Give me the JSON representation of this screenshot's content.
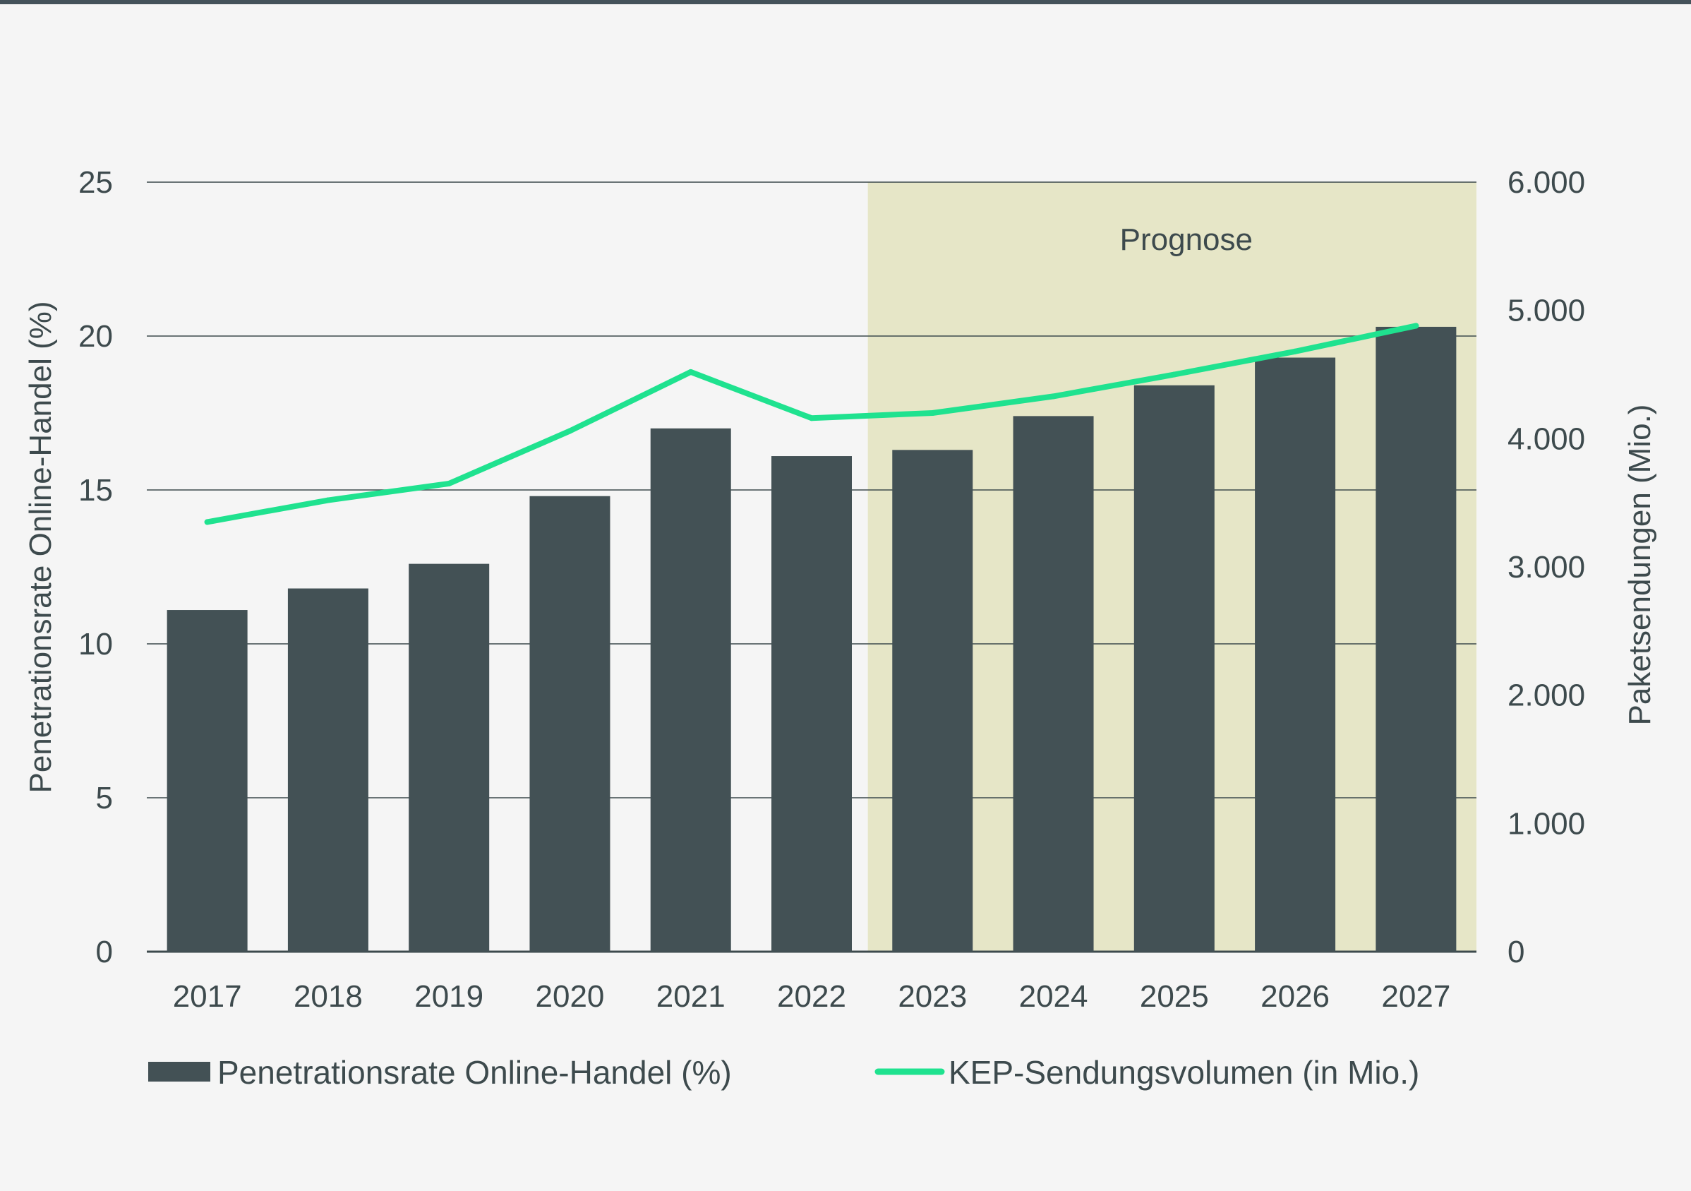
{
  "chart_data": {
    "type": "bar",
    "categories": [
      "2017",
      "2018",
      "2019",
      "2020",
      "2021",
      "2022",
      "2023",
      "2024",
      "2025",
      "2026",
      "2027"
    ],
    "series": [
      {
        "name": "Penetrationsrate Online-Handel (%)",
        "type": "bar",
        "axis": "left",
        "values": [
          11.1,
          11.8,
          12.6,
          14.8,
          17.0,
          16.1,
          16.3,
          17.4,
          18.4,
          19.3,
          20.3
        ]
      },
      {
        "name": "KEP-Sendungsvolumen (in Mio.)",
        "type": "line",
        "axis": "right",
        "values": [
          3350,
          3520,
          3650,
          4060,
          4520,
          4160,
          4200,
          4330,
          4500,
          4680,
          4880
        ]
      }
    ],
    "ylabel": "Penetrationsrate Online-Handel (%)",
    "ylabel_right": "Paketsendungen (Mio.)",
    "ylim": [
      0,
      25
    ],
    "ylim_right": [
      0,
      6000
    ],
    "yticks": [
      "0",
      "5",
      "10",
      "15",
      "20",
      "25"
    ],
    "yticks_right": [
      "0",
      "1.000",
      "2.000",
      "3.000",
      "4.000",
      "5.000",
      "6.000"
    ],
    "forecast_region": {
      "label": "Prognose",
      "from": "2023",
      "to": "2027"
    },
    "legend_position": "bottom",
    "grid": true
  },
  "colors": {
    "bar": "#435155",
    "line": "#1fe28f",
    "forecast_band": "#e6e6c7",
    "gridline": "#3d4a4d",
    "background": "#f5f5f5"
  }
}
